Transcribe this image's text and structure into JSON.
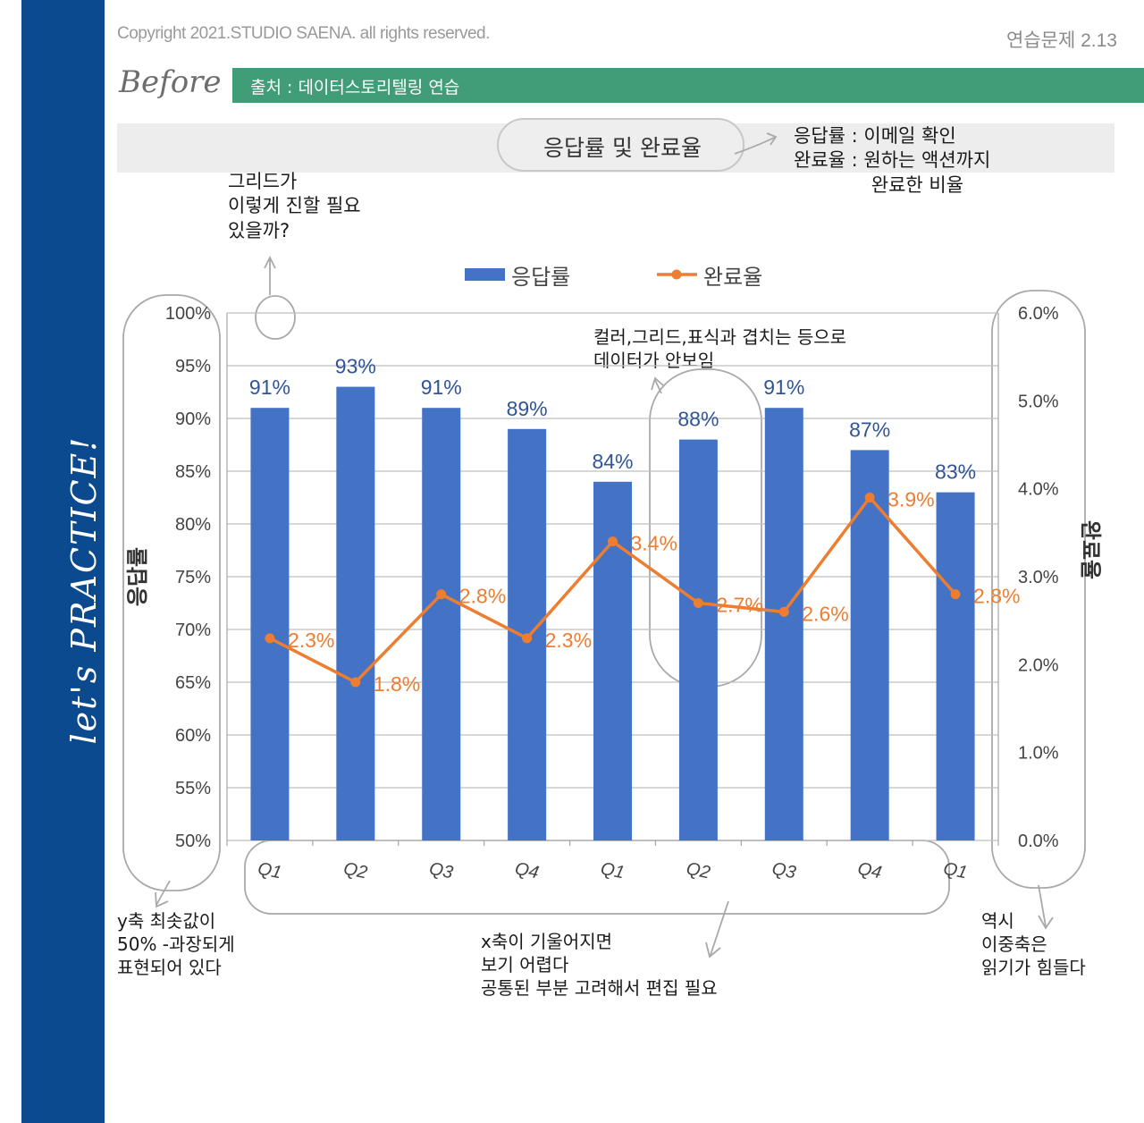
{
  "header": {
    "copyright": "Copyright 2021.STUDIO SAENA. all rights reserved.",
    "exercise": "연습문제 2.13",
    "before": "Before",
    "source": "출처 : 데이터스토리텔링 연습"
  },
  "sidebar": {
    "text": "let's PRACTICE!"
  },
  "chart_title": "응답률 및 완료율",
  "annotations": {
    "definitions": "응답률 : 이메일 확인\n완료율 : 원하는 액션까지\n             완료한 비율",
    "grid": "그리드가\n이렇게 진할 필요\n있을까?",
    "overlap": "컬러,그리드,표식과 겹치는 등으로\n데이터가 안보임",
    "yaxis_min": "y축 최솟값이\n50% -과장되게\n표현되어 있다",
    "xaxis": "x축이 기울어지면\n보기 어렵다\n공통된 부분 고려해서 편집 필요",
    "dual_axis": "역시\n이중축은\n읽기가 힘들다"
  },
  "colors": {
    "bar": "#4472c4",
    "line": "#ed7d31",
    "sidebar": "#0b4a8e",
    "source_bar": "#419d78"
  },
  "chart_data": {
    "type": "bar",
    "categories": [
      "Q1",
      "Q2",
      "Q3",
      "Q4",
      "Q1",
      "Q2",
      "Q3",
      "Q4",
      "Q1"
    ],
    "series": [
      {
        "name": "응답률",
        "type": "bar",
        "axis": "left",
        "values": [
          91,
          93,
          91,
          89,
          84,
          88,
          91,
          87,
          83
        ],
        "labels": [
          "91%",
          "93%",
          "91%",
          "89%",
          "84%",
          "88%",
          "91%",
          "87%",
          "83%"
        ]
      },
      {
        "name": "완료율",
        "type": "line",
        "axis": "right",
        "values": [
          2.3,
          1.8,
          2.8,
          2.3,
          3.4,
          2.7,
          2.6,
          3.9,
          2.8
        ],
        "labels": [
          "2.3%",
          "1.8%",
          "2.8%",
          "2.3%",
          "3.4%",
          "2.7%",
          "2.6%",
          "3.9%",
          "2.8%"
        ]
      }
    ],
    "ylabel_left": "응답률",
    "ylabel_right": "완료율",
    "ylim_left": [
      50,
      100
    ],
    "ylim_right": [
      0,
      6
    ],
    "yticks_left": [
      "50%",
      "55%",
      "60%",
      "65%",
      "70%",
      "75%",
      "80%",
      "85%",
      "90%",
      "95%",
      "100%"
    ],
    "yticks_right": [
      "0.0%",
      "1.0%",
      "2.0%",
      "3.0%",
      "4.0%",
      "5.0%",
      "6.0%"
    ],
    "grid": true,
    "legend_position": "top"
  }
}
